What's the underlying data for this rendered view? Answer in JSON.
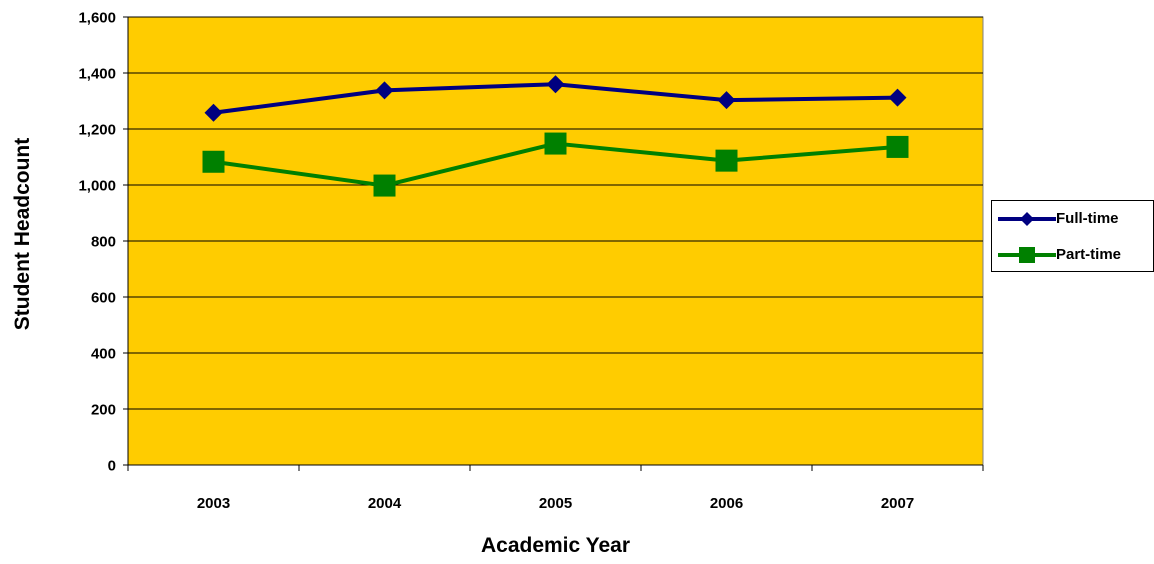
{
  "chart_data": {
    "type": "line",
    "title": "",
    "xlabel": "Academic Year",
    "ylabel": "Student Headcount",
    "categories": [
      "2003",
      "2004",
      "2005",
      "2006",
      "2007"
    ],
    "ylim": [
      0,
      1600
    ],
    "yticks": [
      0,
      200,
      400,
      600,
      800,
      1000,
      1200,
      1400,
      1600
    ],
    "ytick_labels": [
      "0",
      "200",
      "400",
      "600",
      "800",
      "1,000",
      "1,200",
      "1,400",
      "1,600"
    ],
    "grid": true,
    "legend_position": "right",
    "plot_background": "#FFCC00",
    "series": [
      {
        "name": "Full-time",
        "values": [
          1258,
          1338,
          1360,
          1303,
          1312
        ],
        "color": "#000080",
        "marker": "diamond"
      },
      {
        "name": "Part-time",
        "values": [
          1083,
          998,
          1148,
          1087,
          1136
        ],
        "color": "#008000",
        "marker": "square"
      }
    ]
  }
}
